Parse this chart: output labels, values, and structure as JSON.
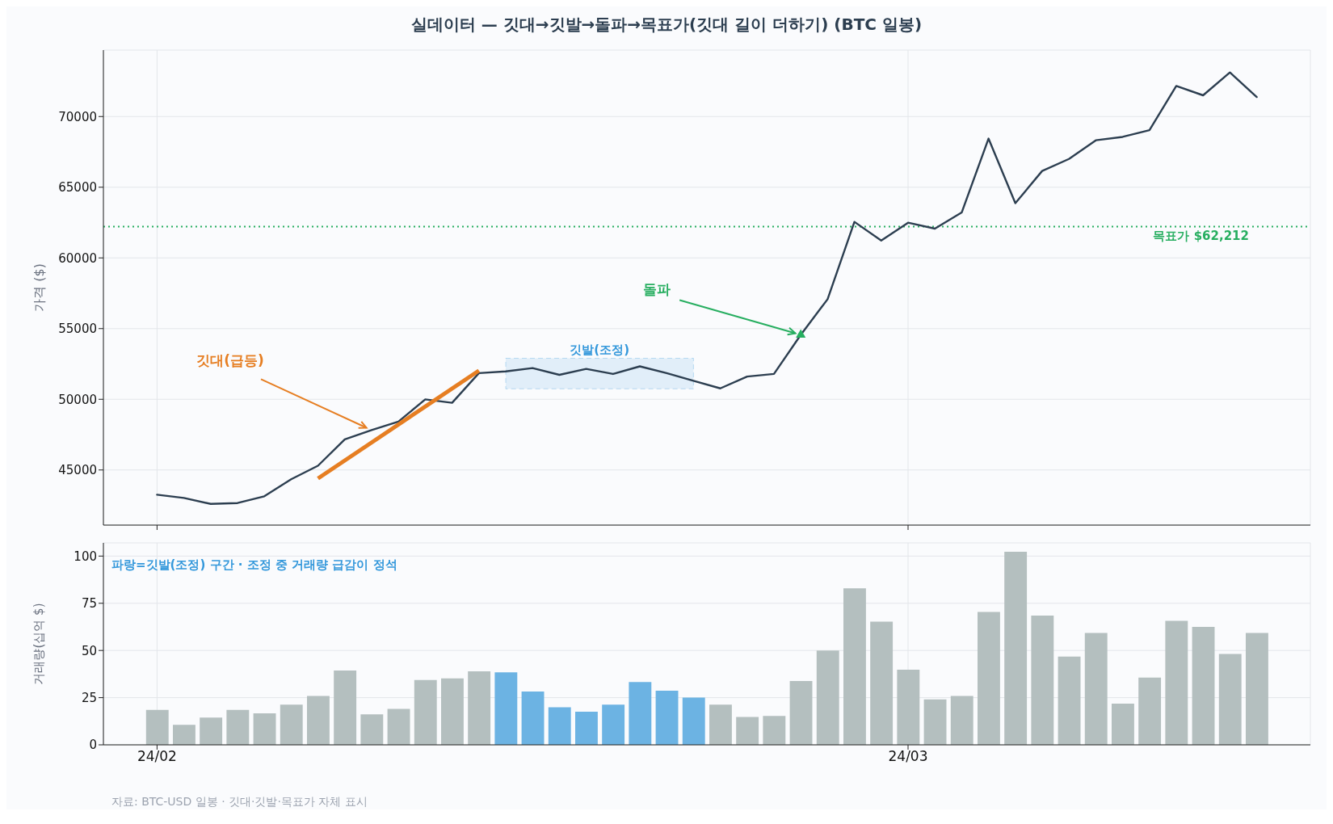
{
  "chart_data": [
    {
      "type": "line",
      "title": "실데이터 — 깃대→깃발→돌파→목표가(깃대 길이 더하기) (BTC 일봉)",
      "ylabel": "가격 ($)",
      "x": [
        "--02-01",
        "--02-02",
        "--02-03",
        "--02-04",
        "--02-05",
        "--02-06",
        "--02-07",
        "--02-08",
        "--02-09",
        "--02-10",
        "--02-11",
        "--02-12",
        "--02-13",
        "--02-14",
        "--02-15",
        "--02-16",
        "--02-17",
        "--02-18",
        "--02-19",
        "--02-20",
        "--02-21",
        "--02-22",
        "--02-23",
        "--02-24",
        "--02-25",
        "--02-26",
        "--02-27",
        "--02-28",
        "--03-01",
        "--03-02",
        "--03-03",
        "--03-04",
        "--03-05",
        "--03-06",
        "--03-07",
        "--03-08",
        "--03-09",
        "--03-10",
        "--03-11",
        "--03-12",
        "--03-13",
        "--03-14"
      ],
      "series": [
        {
          "type": "line",
          "color": "#2c3e50",
          "values": [
            43250,
            43020,
            42600,
            42660,
            43140,
            44340,
            45300,
            47160,
            47820,
            48420,
            49990,
            49750,
            51850,
            51970,
            52210,
            51730,
            52150,
            51790,
            52330,
            51850,
            51310,
            50770,
            51610,
            51790,
            54560,
            57080,
            62550,
            61230,
            62490,
            62070,
            63210,
            68440,
            63870,
            66150,
            67000,
            68320,
            68560,
            69040,
            72160,
            71500,
            73120,
            71380
          ]
        },
        {
          "type": "line",
          "color": "#e67e22",
          "x": [
            "--02-07",
            "--02-13"
          ],
          "values": [
            44400,
            52030
          ]
        },
        {
          "type": "scatter",
          "color": "#27ae60",
          "marker": "triangle",
          "x": [
            "--02-25"
          ],
          "values": [
            54560
          ]
        }
      ],
      "marker": "none",
      "line_style": "solid",
      "xlim": [
        "--01-30",
        "--03-16"
      ],
      "xticks": [
        {
          "value": "--02-01",
          "label": null
        },
        {
          "value": "--03-01",
          "label": null
        }
      ],
      "ylim": [
        41100,
        74700
      ],
      "yticks": [
        45000,
        50000,
        55000,
        60000,
        65000,
        70000
      ],
      "grid": true,
      "tick_labels": "y",
      "ref_lines": [
        {
          "axis": "y",
          "value": 62212,
          "label": "목표가 $62,212",
          "color": "#27ae60",
          "line_style": "dotted"
        }
      ],
      "bands": [
        {
          "axis": "x",
          "from": "--02-14",
          "to": "--02-21",
          "label": "깃발(조정)",
          "color": "#3498db"
        }
      ],
      "annotations": [
        {
          "text": "깃대(급등)",
          "x": "--02-09",
          "y": 47820
        },
        {
          "text": "돌파",
          "x": "--02-25",
          "y": 54560
        }
      ]
    },
    {
      "type": "bar",
      "ylabel": "거래량(십억 $)",
      "x": [
        "--02-01",
        "--02-02",
        "--02-03",
        "--02-04",
        "--02-05",
        "--02-06",
        "--02-07",
        "--02-08",
        "--02-09",
        "--02-10",
        "--02-11",
        "--02-12",
        "--02-13",
        "--02-14",
        "--02-15",
        "--02-16",
        "--02-17",
        "--02-18",
        "--02-19",
        "--02-20",
        "--02-21",
        "--02-22",
        "--02-23",
        "--02-24",
        "--02-25",
        "--02-26",
        "--02-27",
        "--02-28",
        "--03-01",
        "--03-02",
        "--03-03",
        "--03-04",
        "--03-05",
        "--03-06",
        "--03-07",
        "--03-08",
        "--03-09",
        "--03-10",
        "--03-11",
        "--03-12",
        "--03-13",
        "--03-14"
      ],
      "values": [
        18.5,
        10.6,
        14.4,
        18.5,
        16.7,
        21.3,
        25.9,
        39.4,
        16.2,
        19.0,
        34.3,
        35.2,
        38.9,
        38.4,
        28.2,
        19.9,
        17.6,
        21.3,
        33.3,
        28.7,
        25.0,
        21.3,
        14.8,
        15.3,
        33.8,
        50,
        82.9,
        65.3,
        39.8,
        24.1,
        25.9,
        70.4,
        102.3,
        68.5,
        46.8,
        59.3,
        21.8,
        35.6,
        65.7,
        62.5,
        48.1,
        59.3
      ],
      "colors": [
        "#b4bfbf",
        "#b4bfbf",
        "#b4bfbf",
        "#b4bfbf",
        "#b4bfbf",
        "#b4bfbf",
        "#b4bfbf",
        "#b4bfbf",
        "#b4bfbf",
        "#b4bfbf",
        "#b4bfbf",
        "#b4bfbf",
        "#b4bfbf",
        "#6cb3e3",
        "#6cb3e3",
        "#6cb3e3",
        "#6cb3e3",
        "#6cb3e3",
        "#6cb3e3",
        "#6cb3e3",
        "#6cb3e3",
        "#b4bfbf",
        "#b4bfbf",
        "#b4bfbf",
        "#b4bfbf",
        "#b4bfbf",
        "#b4bfbf",
        "#b4bfbf",
        "#b4bfbf",
        "#b4bfbf",
        "#b4bfbf",
        "#b4bfbf",
        "#b4bfbf",
        "#b4bfbf",
        "#b4bfbf",
        "#b4bfbf",
        "#b4bfbf",
        "#b4bfbf",
        "#b4bfbf",
        "#b4bfbf",
        "#b4bfbf",
        "#b4bfbf"
      ],
      "xlim": [
        "--01-30",
        "--03-16"
      ],
      "xticks": [
        {
          "value": "--02-01",
          "label": "24/02"
        },
        {
          "value": "--03-01",
          "label": "24/03"
        }
      ],
      "ylim": [
        0,
        107
      ],
      "yticks": [
        0,
        25,
        50,
        75,
        100
      ],
      "grid": true,
      "annotations": [
        "파랑=깃발(조정) 구간 · 조정 중 거래량 급감이 정석",
        "자료: BTC-USD 일봉 · 깃대·깃발·목표가 자체 표시"
      ]
    }
  ]
}
